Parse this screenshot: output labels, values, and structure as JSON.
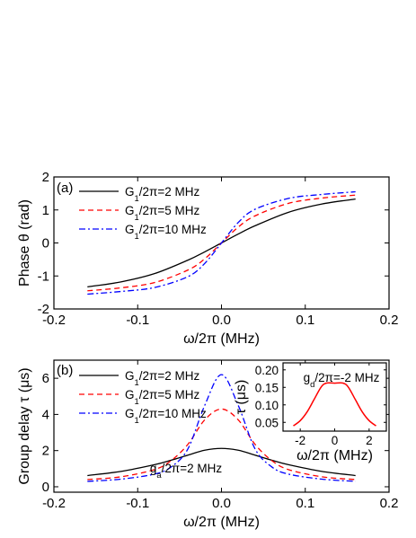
{
  "chart_data": [
    {
      "type": "line",
      "panel_label": "(a)",
      "xlabel": "ω/2π (MHz)",
      "ylabel": "Phase θ (rad)",
      "xlim": [
        -0.2,
        0.2
      ],
      "ylim": [
        -2,
        2
      ],
      "xticks": [
        "-0.2",
        "-0.1",
        "0.0",
        "0.1",
        "0.2"
      ],
      "yticks": [
        "-2",
        "-1",
        "0",
        "1",
        "2"
      ],
      "legend_position": "top-left",
      "series": [
        {
          "name": "G1/2π=2 MHz",
          "color": "#000000",
          "style": "solid",
          "x": [
            -0.16,
            -0.12,
            -0.08,
            -0.04,
            -0.02,
            0.0,
            0.02,
            0.04,
            0.08,
            0.12,
            0.16
          ],
          "y": [
            -1.33,
            -1.18,
            -0.93,
            -0.52,
            -0.27,
            0.0,
            0.27,
            0.52,
            0.93,
            1.18,
            1.33
          ]
        },
        {
          "name": "G1/2π=5 MHz",
          "color": "#ff0000",
          "style": "dash",
          "x": [
            -0.16,
            -0.12,
            -0.08,
            -0.04,
            -0.02,
            0.0,
            0.02,
            0.04,
            0.08,
            0.12,
            0.16
          ],
          "y": [
            -1.45,
            -1.36,
            -1.2,
            -0.82,
            -0.48,
            0.0,
            0.48,
            0.82,
            1.2,
            1.36,
            1.45
          ]
        },
        {
          "name": "G1/2π=10 MHz",
          "color": "#0000ff",
          "style": "dashdot",
          "x": [
            -0.16,
            -0.12,
            -0.08,
            -0.04,
            -0.02,
            0.0,
            0.02,
            0.04,
            0.08,
            0.12,
            0.16
          ],
          "y": [
            -1.55,
            -1.47,
            -1.35,
            -1.02,
            -0.62,
            0.0,
            0.62,
            1.02,
            1.35,
            1.47,
            1.55
          ]
        }
      ],
      "legend_labels": [
        {
          "main": "G",
          "sub": "1",
          "rest": "/2π=2 MHz"
        },
        {
          "main": "G",
          "sub": "1",
          "rest": "/2π=5 MHz"
        },
        {
          "main": "G",
          "sub": "1",
          "rest": "/2π=10 MHz"
        }
      ]
    },
    {
      "type": "line",
      "panel_label": "(b)",
      "xlabel": "ω/2π (MHz)",
      "ylabel": "Group delay τ (μs)",
      "xlim": [
        -0.2,
        0.2
      ],
      "ylim": [
        -0.3,
        7
      ],
      "xticks": [
        "-0.2",
        "-0.1",
        "0.0",
        "0.1",
        "0.2"
      ],
      "yticks": [
        "0",
        "2",
        "4",
        "6"
      ],
      "legend_position": "top-left",
      "annotation": {
        "main": "g",
        "sub": "a",
        "rest": "/2π=2 MHz"
      },
      "series": [
        {
          "name": "G1/2π=2 MHz",
          "color": "#000000",
          "style": "solid",
          "x": [
            -0.16,
            -0.12,
            -0.08,
            -0.06,
            -0.04,
            -0.02,
            0.0,
            0.02,
            0.04,
            0.06,
            0.08,
            0.12,
            0.16
          ],
          "y": [
            0.62,
            0.85,
            1.22,
            1.47,
            1.75,
            2.02,
            2.12,
            2.02,
            1.75,
            1.47,
            1.22,
            0.85,
            0.62
          ]
        },
        {
          "name": "G1/2π=5 MHz",
          "color": "#ff0000",
          "style": "dash",
          "x": [
            -0.16,
            -0.12,
            -0.08,
            -0.06,
            -0.04,
            -0.02,
            0.0,
            0.02,
            0.04,
            0.06,
            0.08,
            0.12,
            0.16
          ],
          "y": [
            0.4,
            0.55,
            0.95,
            1.45,
            2.35,
            3.7,
            4.3,
            3.7,
            2.35,
            1.45,
            0.95,
            0.55,
            0.4
          ]
        },
        {
          "name": "G1/2π=10 MHz",
          "color": "#0000ff",
          "style": "dashdot",
          "x": [
            -0.16,
            -0.12,
            -0.08,
            -0.06,
            -0.04,
            -0.02,
            0.0,
            0.02,
            0.04,
            0.06,
            0.08,
            0.12,
            0.16
          ],
          "y": [
            0.3,
            0.42,
            0.7,
            1.1,
            2.1,
            4.5,
            6.2,
            4.5,
            2.1,
            1.1,
            0.7,
            0.42,
            0.3
          ]
        }
      ],
      "legend_labels": [
        {
          "main": "G",
          "sub": "1",
          "rest": "/2π=2 MHz"
        },
        {
          "main": "G",
          "sub": "1",
          "rest": "/2π=5 MHz"
        },
        {
          "main": "G",
          "sub": "1",
          "rest": "/2π=10 MHz"
        }
      ]
    },
    {
      "type": "line",
      "panel_label": "inset",
      "xlabel": "ω/2π (MHz)",
      "ylabel": "τ (μs)",
      "xlim": [
        -3,
        3
      ],
      "ylim": [
        0.025,
        0.22
      ],
      "xticks": [
        "-2",
        "0",
        "2"
      ],
      "yticks": [
        "0.05",
        "0.10",
        "0.15",
        "0.20"
      ],
      "annotation": {
        "main": "g",
        "sub": "d",
        "rest": "/2π=-2 MHz"
      },
      "series": [
        {
          "name": "",
          "color": "#ff0000",
          "style": "solid",
          "x": [
            -2.4,
            -2.0,
            -1.6,
            -1.2,
            -0.8,
            -0.5,
            0.0,
            0.5,
            0.8,
            1.2,
            1.6,
            2.0,
            2.4
          ],
          "y": [
            0.04,
            0.055,
            0.08,
            0.115,
            0.15,
            0.162,
            0.162,
            0.162,
            0.15,
            0.115,
            0.08,
            0.055,
            0.04
          ]
        }
      ]
    }
  ]
}
